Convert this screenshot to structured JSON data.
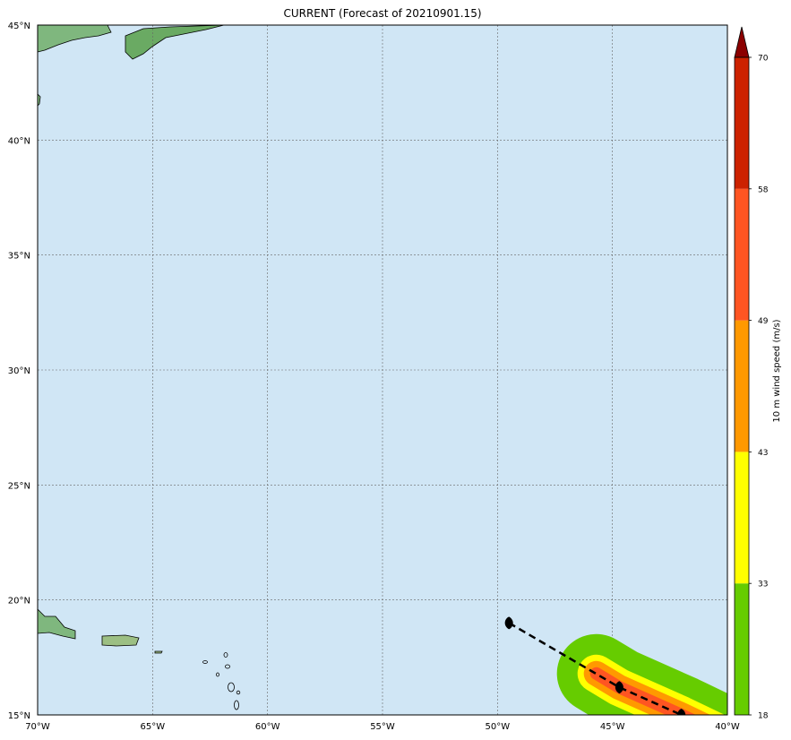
{
  "title": "CURRENT (Forecast of 20210901.15)",
  "map": {
    "ocean_color": "#d0e6f5",
    "lat_labels": [
      "45°N",
      "40°N",
      "35°N",
      "30°N",
      "25°N",
      "20°N",
      "15°N"
    ],
    "lon_labels": [
      "70°W",
      "65°W",
      "60°W",
      "55°W",
      "50°W",
      "45°W",
      "40°W"
    ]
  },
  "track": {
    "points": [
      {
        "lon": -49.5,
        "lat": 19.0
      },
      {
        "lon": -44.7,
        "lat": 16.2
      },
      {
        "lon": -42.0,
        "lat": 15.0
      }
    ],
    "style": "dashed",
    "color": "#000000"
  },
  "wind_swath": {
    "bands": [
      {
        "min": 18,
        "color": "#66cc00"
      },
      {
        "min": 33,
        "color": "#ffff00"
      },
      {
        "min": 43,
        "color": "#ff9900"
      },
      {
        "min": 49,
        "color": "#ff5522"
      }
    ]
  },
  "colorbar": {
    "label": "10 m wind speed (m/s)",
    "ticks": [
      "18",
      "33",
      "43",
      "49",
      "58",
      "70"
    ],
    "colors": [
      "#66cc00",
      "#ffff00",
      "#ff9900",
      "#ff5522",
      "#cc2200"
    ],
    "extend_color": "#8b0000"
  }
}
